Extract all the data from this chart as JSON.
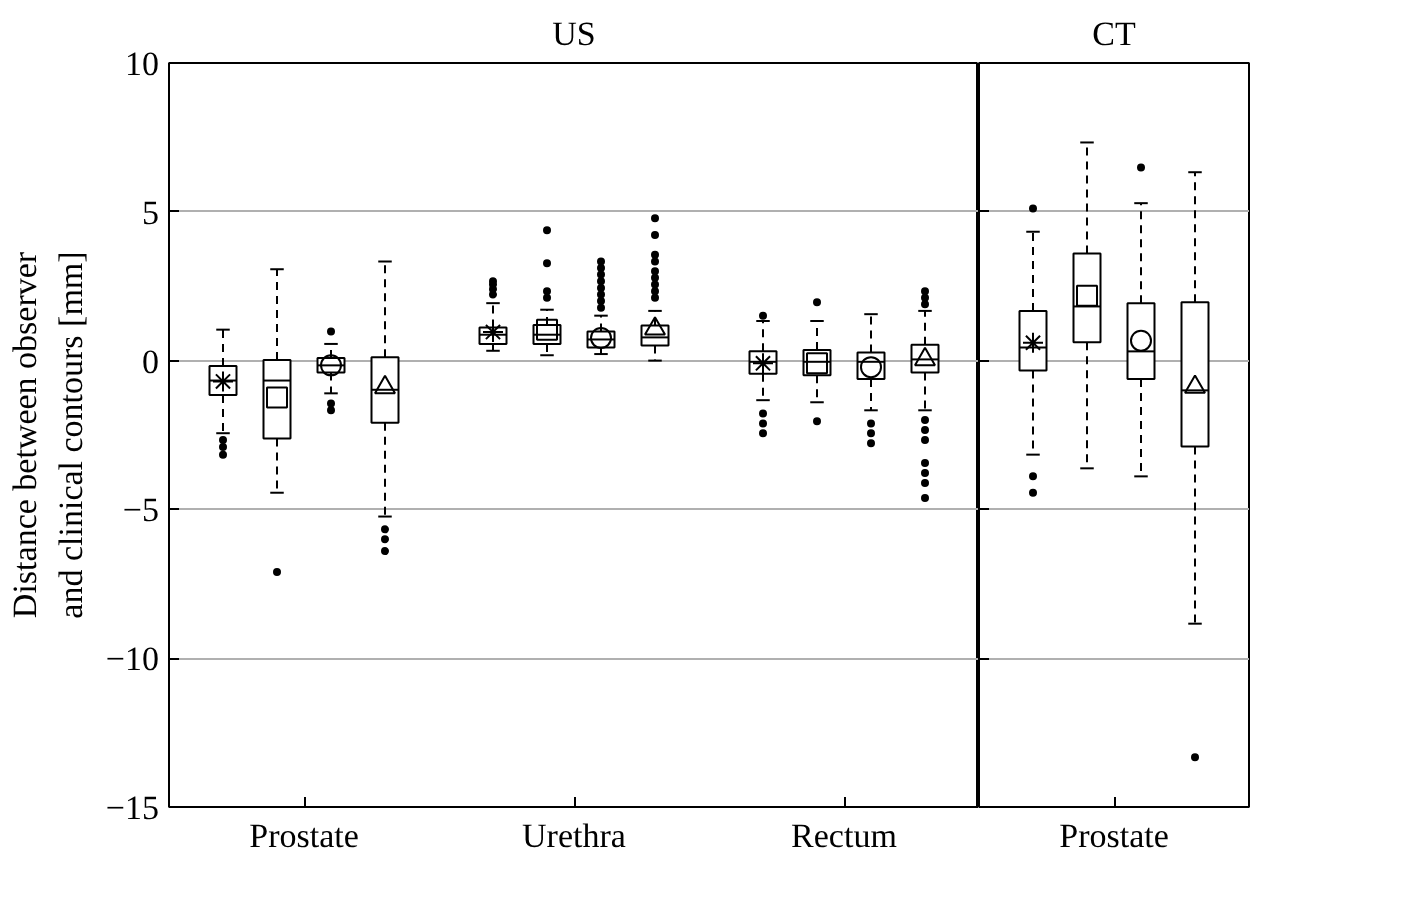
{
  "chart_data": [
    {
      "type": "box",
      "title": "US",
      "ylabel": "Distance between observer\nand clinical contours [mm]",
      "categories": [
        "Prostate",
        "Urethra",
        "Rectum"
      ],
      "ylim": [
        -15,
        10
      ],
      "yticks": [
        -15,
        -10,
        -5,
        0,
        5,
        10
      ],
      "grid": "y",
      "line_style": "dashed",
      "series": [
        {
          "color": "#000000",
          "marker": "star",
          "boxes": [
            {
              "low": -2.44,
              "q1": -1.16,
              "median": -0.67,
              "q3": -0.18,
              "high": 1.04,
              "mean": -0.7,
              "outliers": [
                -2.67,
                -2.9,
                -3.16
              ]
            },
            {
              "low": 0.33,
              "q1": 0.56,
              "median": 0.87,
              "q3": 1.11,
              "high": 1.93,
              "mean": 0.96,
              "outliers": [
                2.22,
                2.4,
                2.56,
                2.67
              ]
            },
            {
              "low": -1.33,
              "q1": -0.44,
              "median": -0.04,
              "q3": 0.31,
              "high": 1.33,
              "mean": -0.09,
              "outliers": [
                1.51,
                -1.78,
                -2.11,
                -2.44
              ]
            }
          ]
        },
        {
          "color": "#000000",
          "marker": "square",
          "boxes": [
            {
              "low": -4.44,
              "q1": -2.62,
              "median": -0.67,
              "q3": 0.02,
              "high": 3.07,
              "mean": -1.24,
              "outliers": [
                -7.1
              ]
            },
            {
              "low": 0.18,
              "q1": 0.56,
              "median": 0.87,
              "q3": 1.2,
              "high": 1.71,
              "mean": 1.04,
              "outliers": [
                2.11,
                2.33,
                3.27,
                4.38
              ]
            },
            {
              "low": -1.4,
              "q1": -0.49,
              "median": -0.04,
              "q3": 0.36,
              "high": 1.33,
              "mean": -0.09,
              "outliers": [
                1.96,
                -2.04
              ]
            }
          ]
        },
        {
          "color": "#000000",
          "marker": "circle",
          "boxes": [
            {
              "low": -1.1,
              "q1": -0.4,
              "median": -0.16,
              "q3": 0.09,
              "high": 0.56,
              "mean": -0.16,
              "outliers": [
                0.98,
                -1.44,
                -1.67
              ]
            },
            {
              "low": 0.22,
              "q1": 0.44,
              "median": 0.71,
              "q3": 0.98,
              "high": 1.51,
              "mean": 0.76,
              "outliers": [
                1.78,
                2.0,
                2.22,
                2.44,
                2.67,
                2.89,
                3.11,
                3.33
              ]
            },
            {
              "low": -1.67,
              "q1": -0.62,
              "median": -0.04,
              "q3": 0.27,
              "high": 1.56,
              "mean": -0.22,
              "outliers": [
                -2.11,
                -2.44,
                -2.78
              ]
            }
          ]
        },
        {
          "color": "#000000",
          "marker": "triangle",
          "boxes": [
            {
              "low": -5.24,
              "q1": -2.09,
              "median": -0.98,
              "q3": 0.11,
              "high": 3.33,
              "mean": -0.9,
              "outliers": [
                -5.67,
                -6.0,
                -6.4
              ]
            },
            {
              "low": 0.0,
              "q1": 0.51,
              "median": 0.78,
              "q3": 1.18,
              "high": 1.67,
              "mean": 1.07,
              "outliers": [
                2.11,
                2.33,
                2.56,
                2.78,
                3.0,
                3.33,
                3.56,
                4.22,
                4.78
              ]
            },
            {
              "low": -1.67,
              "q1": -0.4,
              "median": 0.04,
              "q3": 0.53,
              "high": 1.67,
              "mean": 0.04,
              "outliers": [
                1.89,
                2.11,
                2.33,
                -2.0,
                -2.33,
                -2.67,
                -3.44,
                -3.78,
                -4.11,
                -4.62
              ]
            }
          ]
        }
      ]
    },
    {
      "type": "box",
      "title": "CT",
      "categories": [
        "Prostate"
      ],
      "ylim": [
        -15,
        10
      ],
      "yticks": [
        -15,
        -10,
        -5,
        0,
        5,
        10
      ],
      "grid": "y",
      "line_style": "dashed",
      "tick_labels": "x",
      "series": [
        {
          "color": "#000000",
          "marker": "star",
          "boxes": [
            {
              "low": -3.16,
              "q1": -0.33,
              "median": 0.44,
              "q3": 1.67,
              "high": 4.33,
              "mean": 0.6,
              "outliers": [
                5.11,
                -3.89,
                -4.44
              ]
            }
          ]
        },
        {
          "color": "#000000",
          "marker": "square",
          "boxes": [
            {
              "low": -3.62,
              "q1": 0.62,
              "median": 1.82,
              "q3": 3.6,
              "high": 7.33,
              "mean": 2.18
            }
          ]
        },
        {
          "color": "#000000",
          "marker": "circle",
          "boxes": [
            {
              "low": -3.89,
              "q1": -0.62,
              "median": 0.31,
              "q3": 1.93,
              "high": 5.29,
              "mean": 0.67,
              "outliers": [
                6.49
              ]
            }
          ]
        },
        {
          "color": "#000000",
          "marker": "triangle",
          "boxes": [
            {
              "low": -8.84,
              "q1": -2.89,
              "median": -1.0,
              "q3": 1.96,
              "high": 6.33,
              "mean": -0.89,
              "outliers": [
                -13.33
              ]
            }
          ]
        }
      ]
    }
  ]
}
